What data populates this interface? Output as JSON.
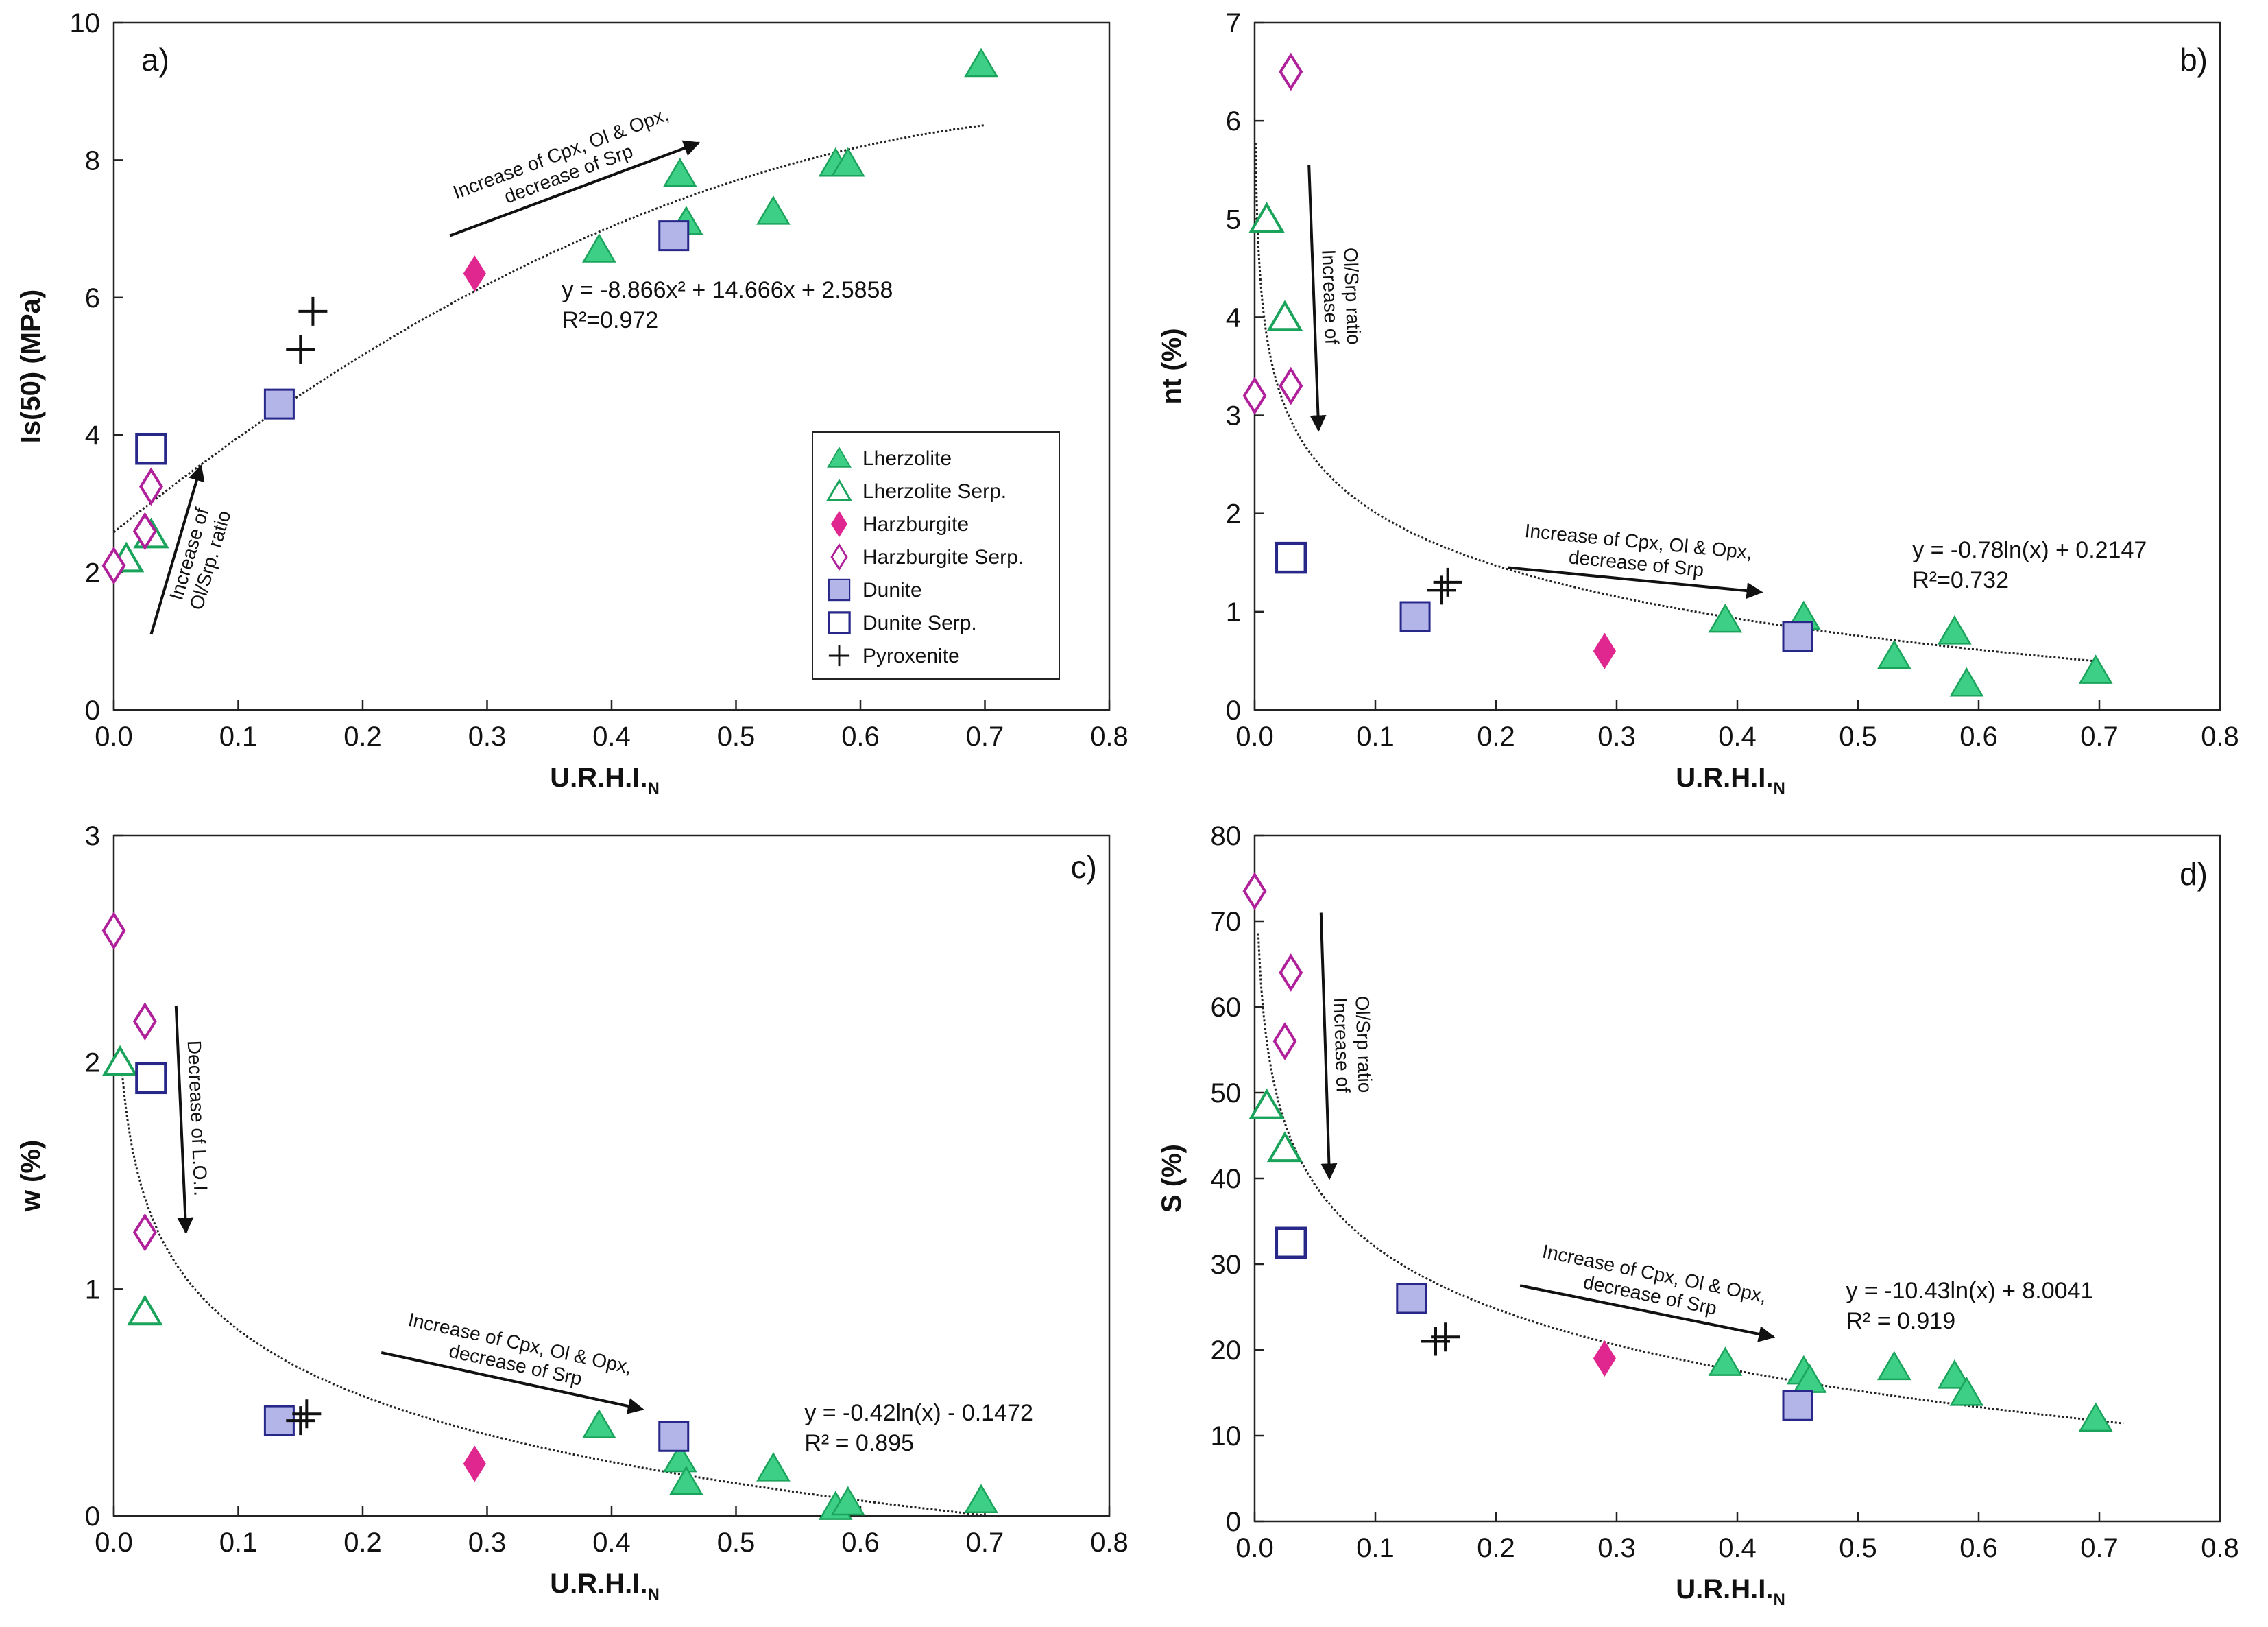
{
  "colors": {
    "lherzolite": "#3ecf86",
    "lherzolite_serp": "#1aa35a",
    "harzburgite": "#e0268f",
    "harzburgite_serp": "#b0209a",
    "dunite_fill": "#b3b5e8",
    "dunite_stroke": "#28288a",
    "pyroxenite": "#111111",
    "curve": "#222222"
  },
  "legend": {
    "lherzolite": "Lherzolite",
    "lherzolite_serp": "Lherzolite Serp.",
    "harzburgite": "Harzburgite",
    "harzburgite_serp": "Harzburgite Serp.",
    "dunite": "Dunite",
    "dunite_serp": "Dunite Serp.",
    "pyroxenite": "Pyroxenite"
  },
  "chart_data": [
    {
      "type": "scatter",
      "panel": "a)",
      "xlabel_main": "U.R.H.I.",
      "xlabel_sub": "N",
      "ylabel": "Is(50) (MPa)",
      "xlim": [
        0,
        0.8
      ],
      "ylim": [
        0,
        10
      ],
      "xticks": [
        "0.0",
        "0.1",
        "0.2",
        "0.3",
        "0.4",
        "0.5",
        "0.6",
        "0.7",
        "0.8"
      ],
      "yticks": [
        "0",
        "2",
        "4",
        "6",
        "8",
        "10"
      ],
      "fit": {
        "kind": "poly",
        "a": -8.866,
        "b": 14.666,
        "c": 2.5858,
        "x_range": [
          0,
          0.7
        ]
      },
      "equation": {
        "line1": "y = -8.866x² + 14.666x + 2.5858",
        "line2": "R²=0.972",
        "anchor_xy": [
          0.36,
          6.0
        ]
      },
      "arrows": [
        {
          "lines": [
            "Increase of Cpx, Ol & Opx,",
            "decrease of Srp"
          ],
          "from": [
            0.27,
            6.9
          ],
          "to": [
            0.47,
            8.25
          ],
          "text_side": "above"
        },
        {
          "lines": [
            "Increase of",
            "Ol/Srp. ratio"
          ],
          "from": [
            0.03,
            1.1
          ],
          "to": [
            0.07,
            3.55
          ],
          "text_side": "right"
        }
      ],
      "series": [
        {
          "name": "Lherzolite",
          "marker": "triangle-filled",
          "points": [
            [
              0.39,
              6.7
            ],
            [
              0.455,
              7.8
            ],
            [
              0.46,
              7.1
            ],
            [
              0.53,
              7.25
            ],
            [
              0.58,
              7.95
            ],
            [
              0.59,
              7.95
            ],
            [
              0.697,
              9.4
            ]
          ]
        },
        {
          "name": "Lherzolite Serp.",
          "marker": "triangle-open",
          "points": [
            [
              0.01,
              2.2
            ],
            [
              0.03,
              2.55
            ]
          ]
        },
        {
          "name": "Harzburgite",
          "marker": "diamond-filled",
          "points": [
            [
              0.29,
              6.35
            ]
          ]
        },
        {
          "name": "Harzburgite Serp.",
          "marker": "diamond-open",
          "points": [
            [
              0.0,
              2.1
            ],
            [
              0.025,
              2.6
            ],
            [
              0.03,
              3.25
            ]
          ]
        },
        {
          "name": "Dunite",
          "marker": "square-filled",
          "points": [
            [
              0.133,
              4.45
            ],
            [
              0.45,
              6.9
            ]
          ]
        },
        {
          "name": "Dunite Serp.",
          "marker": "square-open",
          "points": [
            [
              0.03,
              3.8
            ]
          ]
        },
        {
          "name": "Pyroxenite",
          "marker": "plus",
          "points": [
            [
              0.15,
              5.25
            ],
            [
              0.16,
              5.8
            ]
          ]
        }
      ]
    },
    {
      "type": "scatter",
      "panel": "b)",
      "xlabel_main": "U.R.H.I.",
      "xlabel_sub": "N",
      "ylabel": "nt (%)",
      "xlim": [
        0,
        0.8
      ],
      "ylim": [
        0,
        7
      ],
      "xticks": [
        "0.0",
        "0.1",
        "0.2",
        "0.3",
        "0.4",
        "0.5",
        "0.6",
        "0.7",
        "0.8"
      ],
      "yticks": [
        "0",
        "1",
        "2",
        "3",
        "4",
        "5",
        "6",
        "7"
      ],
      "fit": {
        "kind": "log",
        "a": -0.78,
        "b": 0.2147,
        "x_range": [
          0.0008,
          0.7
        ]
      },
      "equation": {
        "line1": "y = -0.78ln(x) + 0.2147",
        "line2": "R²=0.732",
        "anchor_xy": [
          0.545,
          1.55
        ]
      },
      "arrows": [
        {
          "lines": [
            "Increase of Cpx, Ol & Opx,",
            "decrease of Srp"
          ],
          "from": [
            0.21,
            1.45
          ],
          "to": [
            0.42,
            1.2
          ],
          "text_side": "above"
        },
        {
          "lines": [
            "Increase of",
            "Ol/Srp ratio"
          ],
          "from": [
            0.045,
            5.55
          ],
          "to": [
            0.053,
            2.85
          ],
          "text_side": "right"
        }
      ],
      "series": [
        {
          "name": "Lherzolite",
          "marker": "triangle-filled",
          "points": [
            [
              0.39,
              0.92
            ],
            [
              0.455,
              0.95
            ],
            [
              0.53,
              0.55
            ],
            [
              0.58,
              0.8
            ],
            [
              0.59,
              0.27
            ],
            [
              0.697,
              0.4
            ]
          ]
        },
        {
          "name": "Lherzolite Serp.",
          "marker": "triangle-open",
          "points": [
            [
              0.01,
              5.0
            ],
            [
              0.025,
              4.0
            ]
          ]
        },
        {
          "name": "Harzburgite",
          "marker": "diamond-filled",
          "points": [
            [
              0.29,
              0.6
            ]
          ]
        },
        {
          "name": "Harzburgite Serp.",
          "marker": "diamond-open",
          "points": [
            [
              0.0,
              3.2
            ],
            [
              0.03,
              6.5
            ],
            [
              0.03,
              3.3
            ]
          ]
        },
        {
          "name": "Dunite",
          "marker": "square-filled",
          "points": [
            [
              0.133,
              0.95
            ],
            [
              0.45,
              0.75
            ]
          ]
        },
        {
          "name": "Dunite Serp.",
          "marker": "square-open",
          "points": [
            [
              0.03,
              1.55
            ]
          ]
        },
        {
          "name": "Pyroxenite",
          "marker": "plus",
          "points": [
            [
              0.155,
              1.22
            ],
            [
              0.16,
              1.3
            ]
          ]
        }
      ]
    },
    {
      "type": "scatter",
      "panel": "c)",
      "xlabel_main": "U.R.H.I.",
      "xlabel_sub": "N",
      "ylabel": "w (%)",
      "xlim": [
        0,
        0.8
      ],
      "ylim": [
        0,
        3
      ],
      "xticks": [
        "0.0",
        "0.1",
        "0.2",
        "0.3",
        "0.4",
        "0.5",
        "0.6",
        "0.7",
        "0.8"
      ],
      "yticks": [
        "0",
        "1",
        "2",
        "3"
      ],
      "fit": {
        "kind": "log",
        "a": -0.42,
        "b": -0.1472,
        "x_range": [
          0.006,
          0.7
        ]
      },
      "equation": {
        "line1": "y = -0.42ln(x) - 0.1472",
        "line2": "R² = 0.895",
        "anchor_xy": [
          0.555,
          0.42
        ]
      },
      "arrows": [
        {
          "lines": [
            "Increase of Cpx, Ol & Opx,",
            "decrease of Srp"
          ],
          "from": [
            0.215,
            0.72
          ],
          "to": [
            0.425,
            0.47
          ],
          "text_side": "above"
        },
        {
          "lines": [
            "Decrease of L.O.I."
          ],
          "from": [
            0.05,
            2.25
          ],
          "to": [
            0.058,
            1.25
          ],
          "text_side": "right"
        }
      ],
      "series": [
        {
          "name": "Lherzolite",
          "marker": "triangle-filled",
          "points": [
            [
              0.39,
              0.4
            ],
            [
              0.455,
              0.25
            ],
            [
              0.46,
              0.15
            ],
            [
              0.53,
              0.21
            ],
            [
              0.58,
              0.04
            ],
            [
              0.59,
              0.06
            ],
            [
              0.697,
              0.07
            ]
          ]
        },
        {
          "name": "Lherzolite Serp.",
          "marker": "triangle-open",
          "points": [
            [
              0.005,
              2.0
            ],
            [
              0.025,
              0.9
            ]
          ]
        },
        {
          "name": "Harzburgite",
          "marker": "diamond-filled",
          "points": [
            [
              0.29,
              0.23
            ]
          ]
        },
        {
          "name": "Harzburgite Serp.",
          "marker": "diamond-open",
          "points": [
            [
              0.0,
              2.58
            ],
            [
              0.025,
              2.18
            ],
            [
              0.025,
              1.25
            ]
          ]
        },
        {
          "name": "Dunite",
          "marker": "square-filled",
          "points": [
            [
              0.133,
              0.42
            ],
            [
              0.45,
              0.35
            ]
          ]
        },
        {
          "name": "Dunite Serp.",
          "marker": "square-open",
          "points": [
            [
              0.03,
              1.93
            ]
          ]
        },
        {
          "name": "Pyroxenite",
          "marker": "plus",
          "points": [
            [
              0.15,
              0.42
            ],
            [
              0.155,
              0.45
            ]
          ]
        }
      ]
    },
    {
      "type": "scatter",
      "panel": "d)",
      "xlabel_main": "U.R.H.I.",
      "xlabel_sub": "N",
      "ylabel": "S (%)",
      "xlim": [
        0,
        0.8
      ],
      "ylim": [
        0,
        80
      ],
      "xticks": [
        "0.0",
        "0.1",
        "0.2",
        "0.3",
        "0.4",
        "0.5",
        "0.6",
        "0.7",
        "0.8"
      ],
      "yticks": [
        "0",
        "10",
        "20",
        "30",
        "40",
        "50",
        "60",
        "70",
        "80"
      ],
      "fit": {
        "kind": "log",
        "a": -10.43,
        "b": 8.0041,
        "x_range": [
          0.003,
          0.72
        ]
      },
      "equation": {
        "line1": "y = -10.43ln(x) + 8.0041",
        "line2": "R² = 0.919",
        "anchor_xy": [
          0.49,
          26.0
        ]
      },
      "arrows": [
        {
          "lines": [
            "Increase of Cpx, Ol & Opx,",
            "decrease of Srp"
          ],
          "from": [
            0.22,
            27.5
          ],
          "to": [
            0.43,
            21.5
          ],
          "text_side": "above"
        },
        {
          "lines": [
            "Increase of",
            "Ol/Srp ratio"
          ],
          "from": [
            0.055,
            71
          ],
          "to": [
            0.062,
            40
          ],
          "text_side": "right"
        }
      ],
      "series": [
        {
          "name": "Lherzolite",
          "marker": "triangle-filled",
          "points": [
            [
              0.39,
              18.5
            ],
            [
              0.455,
              17.5
            ],
            [
              0.46,
              16.5
            ],
            [
              0.53,
              18.0
            ],
            [
              0.58,
              17.0
            ],
            [
              0.59,
              15.0
            ],
            [
              0.697,
              12.0
            ]
          ]
        },
        {
          "name": "Lherzolite Serp.",
          "marker": "triangle-open",
          "points": [
            [
              0.01,
              48.5
            ],
            [
              0.025,
              43.5
            ]
          ]
        },
        {
          "name": "Harzburgite",
          "marker": "diamond-filled",
          "points": [
            [
              0.29,
              19.0
            ]
          ]
        },
        {
          "name": "Harzburgite Serp.",
          "marker": "diamond-open",
          "points": [
            [
              0.0,
              73.5
            ],
            [
              0.03,
              64.0
            ],
            [
              0.025,
              56.0
            ]
          ]
        },
        {
          "name": "Dunite",
          "marker": "square-filled",
          "points": [
            [
              0.13,
              26.0
            ],
            [
              0.45,
              13.5
            ]
          ]
        },
        {
          "name": "Dunite Serp.",
          "marker": "square-open",
          "points": [
            [
              0.03,
              32.5
            ]
          ]
        },
        {
          "name": "Pyroxenite",
          "marker": "plus",
          "points": [
            [
              0.15,
              21.0
            ],
            [
              0.158,
              21.5
            ]
          ]
        }
      ]
    }
  ]
}
